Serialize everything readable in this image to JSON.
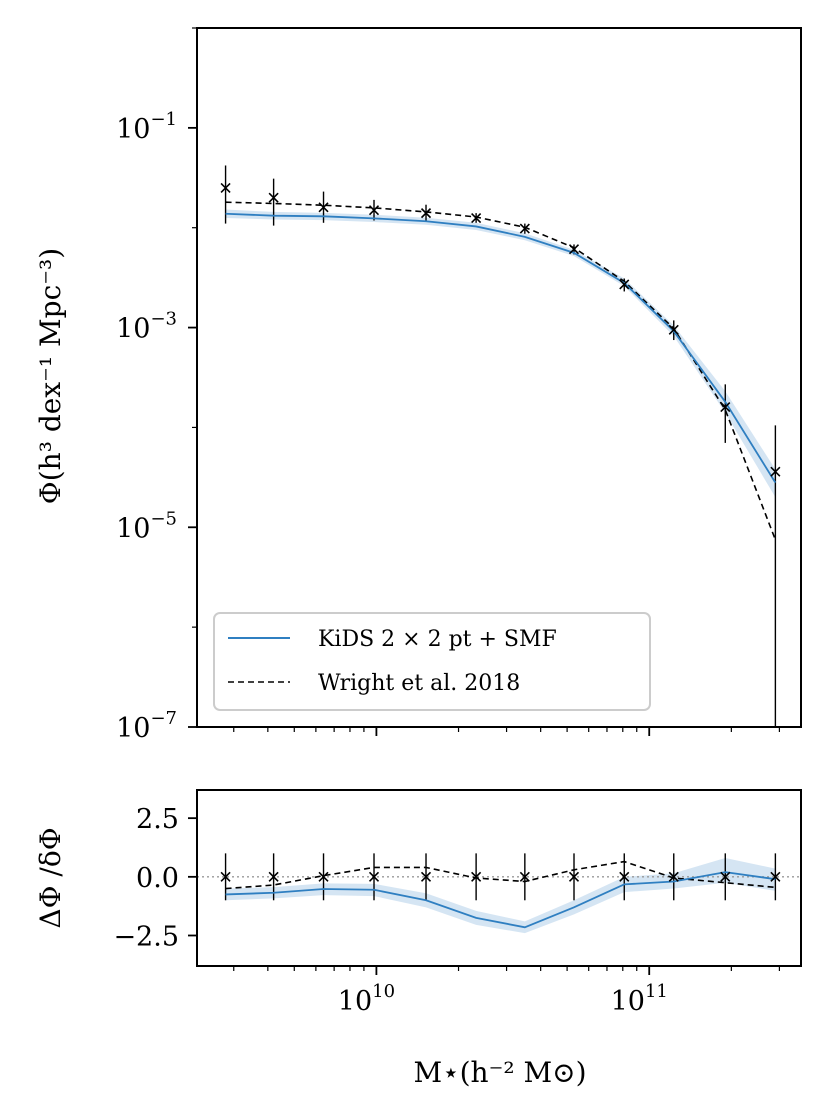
{
  "chart_data": [
    {
      "type": "line",
      "panel": "main",
      "yscale": "log",
      "xscale": "log",
      "xlim": [
        2200000000.0,
        360000000000.0
      ],
      "ylim": [
        1e-07,
        1
      ],
      "ylabel": "Φ(h³ dex⁻¹ Mpc⁻³)",
      "xlabel": "",
      "yticks": [
        {
          "base": "10",
          "exp": "−1",
          "value": 0.1
        },
        {
          "base": "10",
          "exp": "−3",
          "value": 0.001
        },
        {
          "base": "10",
          "exp": "−5",
          "value": 1e-05
        },
        {
          "base": "10",
          "exp": "−7",
          "value": 1e-07
        }
      ],
      "x": [
        2800000000.0,
        4200000000.0,
        6400000000.0,
        9800000000.0,
        15200000000.0,
        23200000000.0,
        35000000000.0,
        53000000000.0,
        81000000000.0,
        123000000000.0,
        190000000000.0,
        290000000000.0
      ],
      "series": [
        {
          "name": "KiDS 2 × 2 pt + SMF",
          "style": "solid",
          "color": "#2f7fc1",
          "values": [
            0.0138,
            0.0132,
            0.013,
            0.0124,
            0.0116,
            0.0103,
            0.0081,
            0.0056,
            0.0028,
            0.00092,
            0.00018,
            2.8e-05
          ],
          "band_low": [
            0.0125,
            0.0121,
            0.0119,
            0.0114,
            0.0107,
            0.0095,
            0.0075,
            0.0052,
            0.0026,
            0.00082,
            0.00014,
            2e-05
          ],
          "band_high": [
            0.0152,
            0.0144,
            0.0141,
            0.0135,
            0.0126,
            0.0112,
            0.0088,
            0.006,
            0.0031,
            0.00105,
            0.00023,
            3.8e-05
          ]
        },
        {
          "name": "Wright et al. 2018",
          "style": "dashed",
          "color": "#000000",
          "values": [
            0.018,
            0.0175,
            0.0168,
            0.0158,
            0.0144,
            0.0128,
            0.0101,
            0.0063,
            0.0029,
            0.00098,
            0.00015,
            7.5e-06
          ]
        }
      ],
      "points": {
        "name": "data",
        "marker": "x",
        "values": [
          0.025,
          0.02,
          0.016,
          0.015,
          0.014,
          0.0125,
          0.0098,
          0.0061,
          0.0027,
          0.00095,
          0.00016,
          3.6e-05
        ],
        "err_low": [
          0.011,
          0.0105,
          0.0112,
          0.0118,
          0.0118,
          0.0112,
          0.0087,
          0.0054,
          0.0023,
          0.00075,
          7e-05,
          1e-07
        ],
        "err_high": [
          0.042,
          0.031,
          0.023,
          0.019,
          0.017,
          0.014,
          0.011,
          0.0068,
          0.0031,
          0.00118,
          0.00027,
          0.000105
        ]
      },
      "legend": {
        "position": "lower-left",
        "entries": [
          "KiDS 2 × 2 pt + SMF",
          "Wright et al. 2018"
        ]
      }
    },
    {
      "type": "line",
      "panel": "residual",
      "xscale": "log",
      "xlim": [
        2200000000.0,
        360000000000.0
      ],
      "ylim": [
        -3.8,
        3.7
      ],
      "ylabel": "ΔΦ /δΦ",
      "xlabel": "M⋆(h⁻² M⊙)",
      "yticks": [
        "2.5",
        "0.0",
        "−2.5"
      ],
      "ytick_values": [
        2.5,
        0.0,
        -2.5
      ],
      "xticks": [
        {
          "base": "10",
          "exp": "10",
          "value": 10000000000.0
        },
        {
          "base": "10",
          "exp": "11",
          "value": 100000000000.0
        }
      ],
      "x": [
        2800000000.0,
        4200000000.0,
        6400000000.0,
        9800000000.0,
        15200000000.0,
        23200000000.0,
        35000000000.0,
        53000000000.0,
        81000000000.0,
        123000000000.0,
        190000000000.0,
        290000000000.0
      ],
      "series": [
        {
          "name": "KiDS 2 × 2 pt + SMF",
          "style": "solid",
          "color": "#2f7fc1",
          "values": [
            -0.75,
            -0.68,
            -0.52,
            -0.55,
            -1.0,
            -1.75,
            -2.15,
            -1.3,
            -0.32,
            -0.2,
            0.2,
            -0.1
          ],
          "band_low": [
            -1.0,
            -0.92,
            -0.78,
            -0.82,
            -1.3,
            -2.05,
            -2.4,
            -1.6,
            -0.65,
            -0.5,
            -0.25,
            -0.6
          ],
          "band_high": [
            -0.5,
            -0.44,
            -0.28,
            -0.3,
            -0.7,
            -1.45,
            -1.9,
            -1.0,
            0.0,
            0.15,
            0.8,
            0.35
          ]
        },
        {
          "name": "Wright et al. 2018",
          "style": "dashed",
          "color": "#000000",
          "values": [
            -0.5,
            -0.35,
            0.05,
            0.4,
            0.4,
            -0.05,
            -0.2,
            0.3,
            0.65,
            -0.05,
            -0.25,
            -0.45
          ]
        }
      ],
      "points": {
        "name": "data",
        "marker": "x",
        "values": [
          0,
          0,
          0,
          0,
          0,
          0,
          0,
          0,
          0,
          0,
          0,
          0
        ],
        "err": [
          1,
          1,
          1,
          1,
          1,
          1,
          1,
          1,
          1,
          1,
          1,
          1
        ]
      },
      "reference_line": 0
    }
  ]
}
